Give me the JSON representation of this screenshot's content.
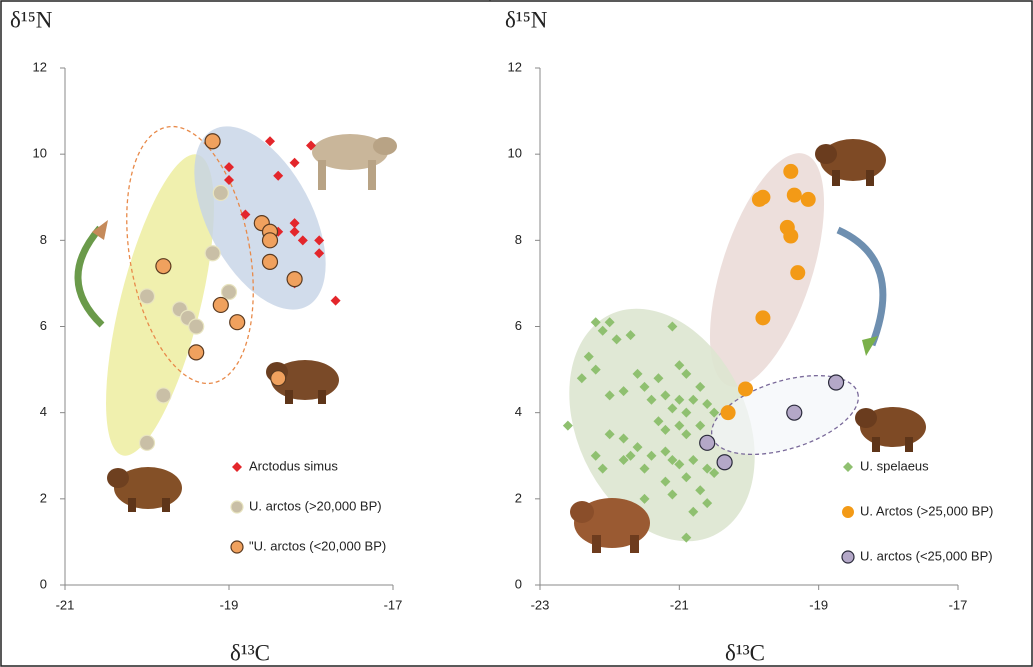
{
  "chart_data": [
    {
      "type": "scatter",
      "xlabel": "δ¹³C",
      "ylabel": "δ¹⁵N",
      "xlim": [
        -21,
        -17
      ],
      "xticks": [
        -21,
        -19,
        -17
      ],
      "ylim": [
        0,
        12
      ],
      "yticks": [
        0,
        2,
        4,
        6,
        8,
        10,
        12
      ],
      "legend": "lower right",
      "series": [
        {
          "name": "Arctodus simus",
          "color": "#e3262b",
          "marker": "diamond",
          "x": [
            -19.0,
            -19.0,
            -18.5,
            -18.0,
            -18.2,
            -18.4,
            -18.8,
            -18.6,
            -18.2,
            -18.2,
            -18.1,
            -17.9,
            -17.9,
            -18.2,
            -17.7,
            -18.4
          ],
          "values": [
            9.7,
            9.4,
            10.3,
            10.2,
            9.8,
            9.5,
            8.6,
            8.4,
            8.4,
            8.2,
            8.0,
            8.0,
            7.7,
            7.0,
            6.6,
            8.2
          ]
        },
        {
          "name": "U. arctos (>20,000 BP)",
          "color": "#c9bfa6",
          "edgecolor": "#e8e4c0",
          "marker": "circle",
          "x": [
            -20.0,
            -19.8,
            -20.0,
            -19.6,
            -19.5,
            -19.4,
            -19.2,
            -19.1,
            -19.0
          ],
          "values": [
            6.7,
            4.4,
            3.3,
            6.4,
            6.2,
            6.0,
            7.7,
            9.1,
            6.8
          ]
        },
        {
          "name": "\"U. arctos (<20,000 BP)",
          "color": "#f0a15e",
          "edgecolor": "#5a3a20",
          "marker": "circle",
          "x": [
            -19.2,
            -19.8,
            -19.1,
            -18.9,
            -19.4,
            -18.4,
            -18.6,
            -18.5,
            -18.5,
            -18.5,
            -18.2
          ],
          "values": [
            10.3,
            7.4,
            6.5,
            6.1,
            5.4,
            4.8,
            8.4,
            8.2,
            8.0,
            7.5,
            7.1
          ]
        }
      ]
    },
    {
      "type": "scatter",
      "xlabel": "δ¹³C",
      "ylabel": "δ¹⁵N",
      "xlim": [
        -23,
        -17
      ],
      "xticks": [
        -23,
        -21,
        -19,
        -17
      ],
      "ylim": [
        0,
        12
      ],
      "yticks": [
        0,
        2,
        4,
        6,
        8,
        10,
        12
      ],
      "legend": "lower right",
      "series": [
        {
          "name": "U. spelaeus",
          "color": "#8fc070",
          "marker": "diamond",
          "x": [
            -22.2,
            -22.0,
            -22.1,
            -22.3,
            -21.9,
            -21.7,
            -22.4,
            -22.2,
            -22.0,
            -21.8,
            -21.6,
            -21.5,
            -21.4,
            -21.3,
            -21.1,
            -21.0,
            -20.9,
            -21.2,
            -21.1,
            -21.0,
            -20.9,
            -20.8,
            -20.7,
            -20.6,
            -20.5,
            -21.3,
            -21.2,
            -21.0,
            -20.9,
            -20.7,
            -22.6,
            -22.0,
            -21.8,
            -21.6,
            -21.4,
            -21.7,
            -22.2,
            -22.1,
            -21.8,
            -21.5,
            -21.2,
            -21.1,
            -21.0,
            -20.9,
            -20.8,
            -20.6,
            -20.5,
            -21.2,
            -21.1,
            -20.7,
            -20.6,
            -20.8,
            -20.9,
            -21.5
          ],
          "values": [
            6.1,
            6.1,
            5.9,
            5.3,
            5.7,
            5.8,
            4.8,
            5.0,
            4.4,
            4.5,
            4.9,
            4.6,
            4.3,
            4.8,
            6.0,
            5.1,
            4.9,
            4.4,
            4.1,
            4.3,
            4.0,
            4.3,
            4.6,
            4.2,
            4.0,
            3.8,
            3.6,
            3.7,
            3.5,
            3.7,
            3.7,
            3.5,
            3.4,
            3.2,
            3.0,
            3.0,
            3.0,
            2.7,
            2.9,
            2.7,
            3.1,
            2.9,
            2.8,
            2.5,
            2.9,
            2.7,
            2.6,
            2.4,
            2.1,
            2.2,
            1.9,
            1.7,
            1.1,
            2.0
          ]
        },
        {
          "name": "U. Arctos (>25,000 BP)",
          "color": "#f39a16",
          "marker": "circle",
          "x": [
            -19.8,
            -19.85,
            -19.4,
            -19.35,
            -19.15,
            -19.45,
            -19.4,
            -19.3,
            -19.8,
            -20.05,
            -20.3
          ],
          "values": [
            9.0,
            8.95,
            9.6,
            9.05,
            8.95,
            8.3,
            8.1,
            7.25,
            6.2,
            4.55,
            4.0
          ]
        },
        {
          "name": "U. arctos (<25,000 BP)",
          "color": "#b4a8c8",
          "edgecolor": "#2a2a3a",
          "marker": "circle",
          "x": [
            -20.6,
            -20.35,
            -19.35,
            -18.75
          ],
          "values": [
            3.3,
            2.85,
            4.0,
            4.7
          ]
        }
      ]
    }
  ]
}
